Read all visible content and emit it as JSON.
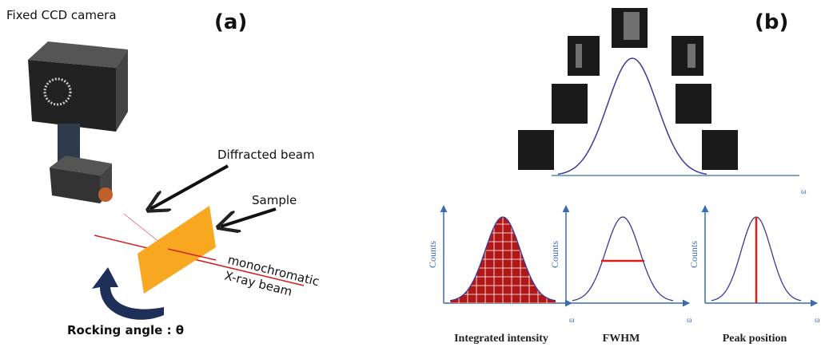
{
  "panel_a": {
    "label": "(a)",
    "camera_label": "Fixed CCD camera",
    "diffracted_label": "Diffracted beam",
    "sample_label": "Sample",
    "beam_label_1": "monochromatic",
    "beam_label_2": "X-ray beam",
    "rocking_label": "Rocking angle : θ"
  },
  "panel_b": {
    "label": "(b)",
    "top_axis_label": "ω",
    "plots": [
      {
        "y_label": "Counts",
        "x_label": "ω",
        "title": "Integrated intensity"
      },
      {
        "y_label": "Counts",
        "x_label": "ω",
        "title": "FWHM"
      },
      {
        "y_label": "Counts",
        "x_label": "ω",
        "title": "Peak position"
      }
    ]
  }
}
